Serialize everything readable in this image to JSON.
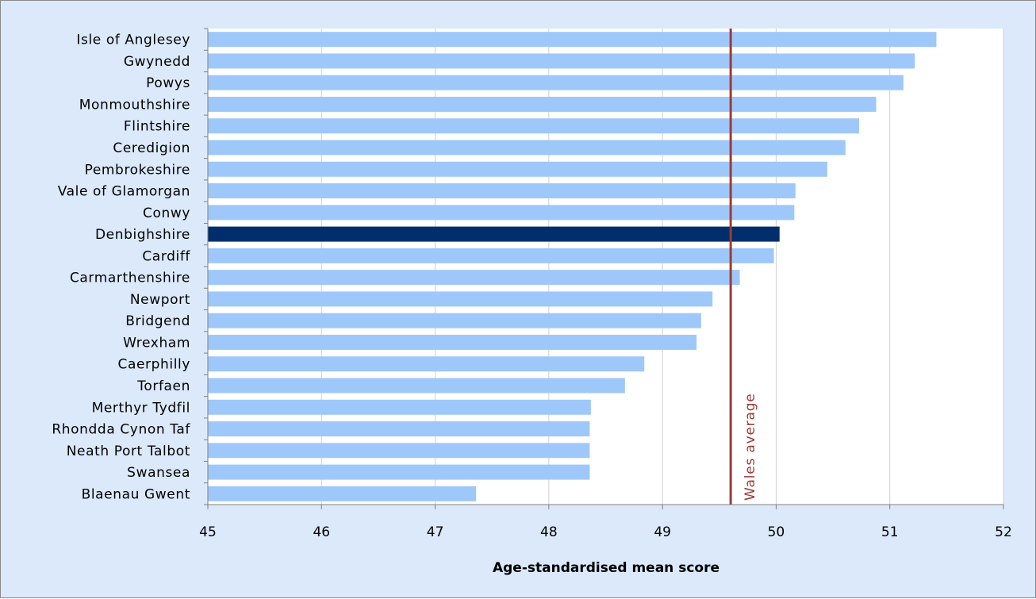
{
  "chart_data": {
    "type": "bar",
    "orientation": "horizontal",
    "categories": [
      "Isle of Anglesey",
      "Gwynedd",
      "Powys",
      "Monmouthshire",
      "Flintshire",
      "Ceredigion",
      "Pembrokeshire",
      "Vale of Glamorgan",
      "Conwy",
      "Denbighshire",
      "Cardiff",
      "Carmarthenshire",
      "Newport",
      "Bridgend",
      "Wrexham",
      "Caerphilly",
      "Torfaen",
      "Merthyr Tydfil",
      "Rhondda Cynon Taf",
      "Neath Port Talbot",
      "Swansea",
      "Blaenau Gwent"
    ],
    "values": [
      51.41,
      51.22,
      51.12,
      50.88,
      50.73,
      50.61,
      50.45,
      50.17,
      50.16,
      50.03,
      49.98,
      49.68,
      49.44,
      49.34,
      49.3,
      48.84,
      48.67,
      48.37,
      48.36,
      48.36,
      48.36,
      47.36
    ],
    "highlight": "Denbighshire",
    "xlabel": "Age-standardised mean score",
    "xlim": [
      45,
      52
    ],
    "xticks": [
      "45",
      "46",
      "47",
      "48",
      "49",
      "50",
      "51",
      "52"
    ],
    "vertical_gridlines": true,
    "reference_line": {
      "value": 49.6,
      "label": "Wales average"
    },
    "colors": {
      "background": "#dbe9fb",
      "plot_area": "#ffffff",
      "bar": "#9fc8fa",
      "highlight_bar": "#002e6b",
      "reference_line": "#9b3b37",
      "gridline": "#d0d0d0",
      "axis": "#808080"
    }
  }
}
